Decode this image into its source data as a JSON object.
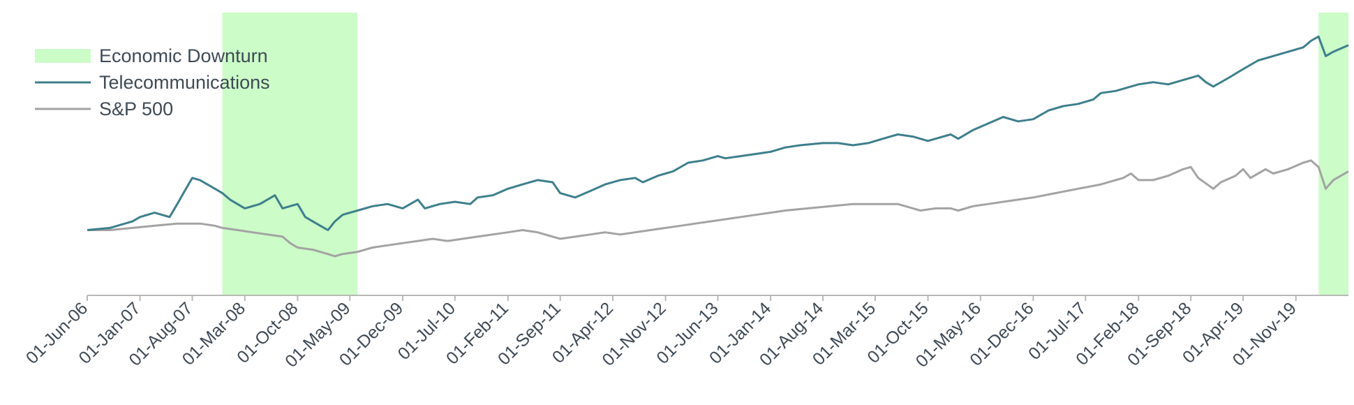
{
  "chart_data": {
    "type": "line",
    "title": "",
    "xlabel": "",
    "ylabel": "",
    "x_ticks": [
      "01-Jun-06",
      "01-Jan-07",
      "01-Aug-07",
      "01-Mar-08",
      "01-Oct-08",
      "01-May-09",
      "01-Dec-09",
      "01-Jul-10",
      "01-Feb-11",
      "01-Sep-11",
      "01-Apr-12",
      "01-Nov-12",
      "01-Jun-13",
      "01-Jan-14",
      "01-Aug-14",
      "01-Mar-15",
      "01-Oct-15",
      "01-May-16",
      "01-Dec-16",
      "01-Jul-17",
      "01-Feb-18",
      "01-Sep-18",
      "01-Apr-19",
      "01-Nov-19"
    ],
    "x_range": [
      "2006-06-01",
      "2020-06-01"
    ],
    "y_axis_visible": false,
    "grid": false,
    "legend_position": "top-left",
    "shaded_regions": [
      {
        "name": "Economic Downturn",
        "start": "2007-12-01",
        "end": "2009-06-01",
        "color": "#ccfcc8"
      },
      {
        "name": "Economic Downturn",
        "start": "2020-02-01",
        "end": "2020-06-01",
        "color": "#ccfcc8"
      }
    ],
    "legend": [
      {
        "label": "Economic Downturn",
        "kind": "patch",
        "color": "#ccfcc8"
      },
      {
        "label": "Telecommunications",
        "kind": "line",
        "color": "#3d7f8c"
      },
      {
        "label": "S&P 500",
        "kind": "line",
        "color": "#a3a3a3"
      }
    ],
    "series": [
      {
        "name": "Telecommunications",
        "color": "#3d7f8c",
        "points": [
          [
            "2006-06-01",
            100
          ],
          [
            "2006-09-01",
            101
          ],
          [
            "2006-12-01",
            104
          ],
          [
            "2007-01-01",
            106
          ],
          [
            "2007-03-01",
            108
          ],
          [
            "2007-05-01",
            106
          ],
          [
            "2007-06-01",
            112
          ],
          [
            "2007-07-01",
            118
          ],
          [
            "2007-08-01",
            124
          ],
          [
            "2007-09-01",
            123
          ],
          [
            "2007-10-01",
            121
          ],
          [
            "2007-11-01",
            119
          ],
          [
            "2007-12-01",
            117
          ],
          [
            "2008-01-01",
            114
          ],
          [
            "2008-03-01",
            110
          ],
          [
            "2008-05-01",
            112
          ],
          [
            "2008-07-01",
            116
          ],
          [
            "2008-08-01",
            110
          ],
          [
            "2008-10-01",
            112
          ],
          [
            "2008-11-01",
            106
          ],
          [
            "2009-01-01",
            102
          ],
          [
            "2009-02-01",
            100
          ],
          [
            "2009-03-01",
            104
          ],
          [
            "2009-04-01",
            107
          ],
          [
            "2009-05-01",
            108
          ],
          [
            "2009-06-01",
            109
          ],
          [
            "2009-08-01",
            111
          ],
          [
            "2009-10-01",
            112
          ],
          [
            "2009-12-01",
            110
          ],
          [
            "2010-02-01",
            114
          ],
          [
            "2010-03-01",
            110
          ],
          [
            "2010-05-01",
            112
          ],
          [
            "2010-07-01",
            113
          ],
          [
            "2010-09-01",
            112
          ],
          [
            "2010-10-01",
            115
          ],
          [
            "2010-12-01",
            116
          ],
          [
            "2011-02-01",
            119
          ],
          [
            "2011-04-01",
            121
          ],
          [
            "2011-06-01",
            123
          ],
          [
            "2011-08-01",
            122
          ],
          [
            "2011-09-01",
            117
          ],
          [
            "2011-11-01",
            115
          ],
          [
            "2012-01-01",
            118
          ],
          [
            "2012-03-01",
            121
          ],
          [
            "2012-05-01",
            123
          ],
          [
            "2012-07-01",
            124
          ],
          [
            "2012-08-01",
            122
          ],
          [
            "2012-10-01",
            125
          ],
          [
            "2012-12-01",
            127
          ],
          [
            "2013-02-01",
            131
          ],
          [
            "2013-04-01",
            132
          ],
          [
            "2013-06-01",
            134
          ],
          [
            "2013-07-01",
            133
          ],
          [
            "2013-09-01",
            134
          ],
          [
            "2013-11-01",
            135
          ],
          [
            "2014-01-01",
            136
          ],
          [
            "2014-03-01",
            138
          ],
          [
            "2014-05-01",
            139
          ],
          [
            "2014-08-01",
            140
          ],
          [
            "2014-10-01",
            140
          ],
          [
            "2014-12-01",
            139
          ],
          [
            "2015-02-01",
            140
          ],
          [
            "2015-04-01",
            142
          ],
          [
            "2015-06-01",
            144
          ],
          [
            "2015-08-01",
            143
          ],
          [
            "2015-10-01",
            141
          ],
          [
            "2015-11-01",
            142
          ],
          [
            "2016-01-01",
            144
          ],
          [
            "2016-02-01",
            142
          ],
          [
            "2016-04-01",
            146
          ],
          [
            "2016-06-01",
            149
          ],
          [
            "2016-08-01",
            152
          ],
          [
            "2016-10-01",
            150
          ],
          [
            "2016-12-01",
            151
          ],
          [
            "2017-02-01",
            155
          ],
          [
            "2017-04-01",
            157
          ],
          [
            "2017-06-01",
            158
          ],
          [
            "2017-08-01",
            160
          ],
          [
            "2017-09-01",
            163
          ],
          [
            "2017-11-01",
            164
          ],
          [
            "2018-01-01",
            166
          ],
          [
            "2018-02-01",
            167
          ],
          [
            "2018-04-01",
            168
          ],
          [
            "2018-06-01",
            167
          ],
          [
            "2018-08-01",
            169
          ],
          [
            "2018-10-01",
            171
          ],
          [
            "2018-11-01",
            168
          ],
          [
            "2018-12-01",
            166
          ],
          [
            "2019-02-01",
            170
          ],
          [
            "2019-04-01",
            174
          ],
          [
            "2019-06-01",
            178
          ],
          [
            "2019-08-01",
            180
          ],
          [
            "2019-10-01",
            182
          ],
          [
            "2019-12-01",
            184
          ],
          [
            "2020-01-01",
            187
          ],
          [
            "2020-02-01",
            189
          ],
          [
            "2020-03-01",
            180
          ],
          [
            "2020-04-01",
            182
          ],
          [
            "2020-06-01",
            185
          ]
        ]
      },
      {
        "name": "S&P 500",
        "color": "#a3a3a3",
        "points": [
          [
            "2006-06-01",
            100
          ],
          [
            "2006-09-01",
            100
          ],
          [
            "2006-12-01",
            101
          ],
          [
            "2007-03-01",
            102
          ],
          [
            "2007-06-01",
            103
          ],
          [
            "2007-09-01",
            103
          ],
          [
            "2007-11-01",
            102
          ],
          [
            "2007-12-01",
            101
          ],
          [
            "2008-02-01",
            100
          ],
          [
            "2008-04-01",
            99
          ],
          [
            "2008-06-01",
            98
          ],
          [
            "2008-08-01",
            97
          ],
          [
            "2008-09-01",
            94
          ],
          [
            "2008-10-01",
            92
          ],
          [
            "2008-12-01",
            91
          ],
          [
            "2009-02-01",
            89
          ],
          [
            "2009-03-01",
            88
          ],
          [
            "2009-04-01",
            89
          ],
          [
            "2009-06-01",
            90
          ],
          [
            "2009-08-01",
            92
          ],
          [
            "2009-10-01",
            93
          ],
          [
            "2009-12-01",
            94
          ],
          [
            "2010-02-01",
            95
          ],
          [
            "2010-04-01",
            96
          ],
          [
            "2010-06-01",
            95
          ],
          [
            "2010-08-01",
            96
          ],
          [
            "2010-10-01",
            97
          ],
          [
            "2010-12-01",
            98
          ],
          [
            "2011-02-01",
            99
          ],
          [
            "2011-04-01",
            100
          ],
          [
            "2011-06-01",
            99
          ],
          [
            "2011-08-01",
            97
          ],
          [
            "2011-09-01",
            96
          ],
          [
            "2011-11-01",
            97
          ],
          [
            "2012-01-01",
            98
          ],
          [
            "2012-03-01",
            99
          ],
          [
            "2012-05-01",
            98
          ],
          [
            "2012-07-01",
            99
          ],
          [
            "2012-09-01",
            100
          ],
          [
            "2012-11-01",
            101
          ],
          [
            "2013-01-01",
            102
          ],
          [
            "2013-03-01",
            103
          ],
          [
            "2013-05-01",
            104
          ],
          [
            "2013-07-01",
            105
          ],
          [
            "2013-09-01",
            106
          ],
          [
            "2013-11-01",
            107
          ],
          [
            "2014-01-01",
            108
          ],
          [
            "2014-03-01",
            109
          ],
          [
            "2014-06-01",
            110
          ],
          [
            "2014-09-01",
            111
          ],
          [
            "2014-12-01",
            112
          ],
          [
            "2015-03-01",
            112
          ],
          [
            "2015-06-01",
            112
          ],
          [
            "2015-08-01",
            110
          ],
          [
            "2015-09-01",
            109
          ],
          [
            "2015-11-01",
            110
          ],
          [
            "2016-01-01",
            110
          ],
          [
            "2016-02-01",
            109
          ],
          [
            "2016-04-01",
            111
          ],
          [
            "2016-06-01",
            112
          ],
          [
            "2016-08-01",
            113
          ],
          [
            "2016-10-01",
            114
          ],
          [
            "2016-12-01",
            115
          ],
          [
            "2017-03-01",
            117
          ],
          [
            "2017-06-01",
            119
          ],
          [
            "2017-09-01",
            121
          ],
          [
            "2017-12-01",
            124
          ],
          [
            "2018-01-01",
            126
          ],
          [
            "2018-02-01",
            123
          ],
          [
            "2018-04-01",
            123
          ],
          [
            "2018-06-01",
            125
          ],
          [
            "2018-08-01",
            128
          ],
          [
            "2018-09-01",
            129
          ],
          [
            "2018-10-01",
            124
          ],
          [
            "2018-12-01",
            119
          ],
          [
            "2019-01-01",
            122
          ],
          [
            "2019-03-01",
            125
          ],
          [
            "2019-04-01",
            128
          ],
          [
            "2019-05-01",
            124
          ],
          [
            "2019-07-01",
            128
          ],
          [
            "2019-08-01",
            126
          ],
          [
            "2019-10-01",
            128
          ],
          [
            "2019-12-01",
            131
          ],
          [
            "2020-01-01",
            132
          ],
          [
            "2020-02-01",
            129
          ],
          [
            "2020-03-01",
            119
          ],
          [
            "2020-04-01",
            123
          ],
          [
            "2020-06-01",
            127
          ]
        ]
      }
    ]
  }
}
